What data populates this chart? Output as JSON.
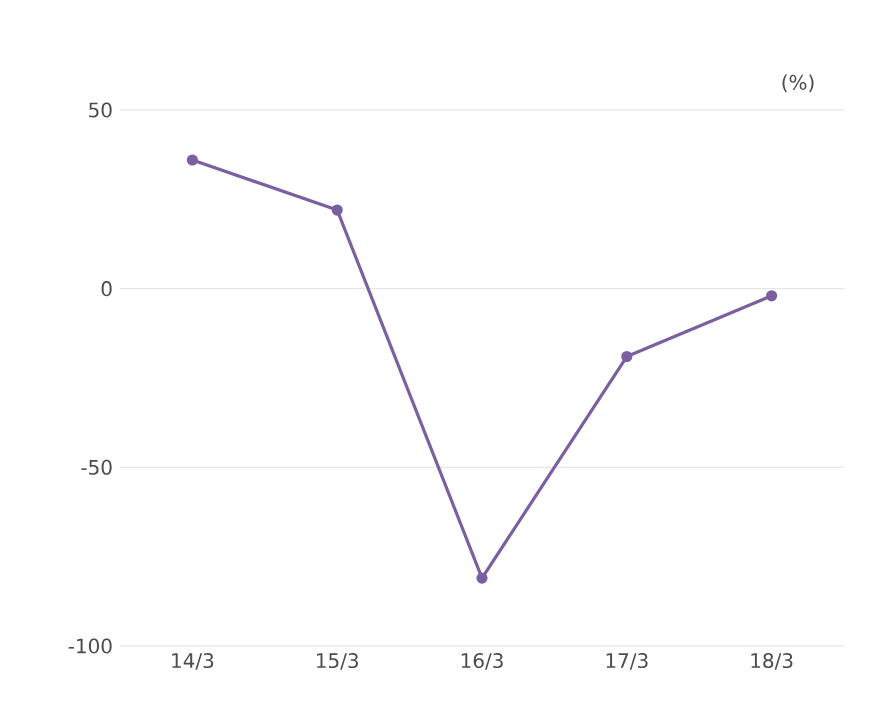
{
  "chart_data": {
    "type": "line",
    "ylabel": "(%)",
    "categories": [
      "14/3",
      "15/3",
      "16/3",
      "17/3",
      "18/3"
    ],
    "series": [
      {
        "color": "#7b5fa0",
        "values": [
          36,
          22,
          -81,
          -19,
          -2
        ]
      }
    ],
    "ylim": [
      -100,
      50
    ],
    "yticks": [
      -100,
      -50,
      0,
      50
    ],
    "grid": "y",
    "marker": "circle",
    "line_style": "solid"
  }
}
